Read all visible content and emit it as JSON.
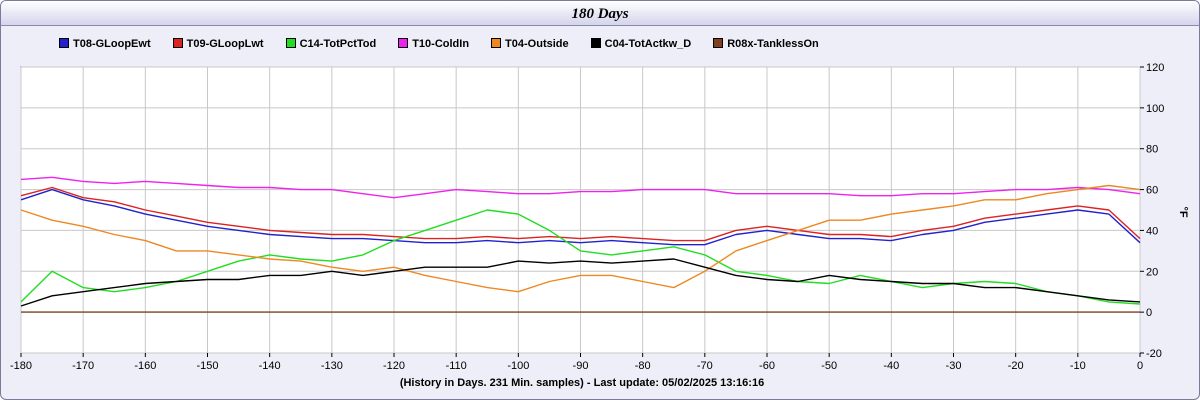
{
  "chart_data": {
    "type": "line",
    "title": "180 Days",
    "xlabel": "(History in Days. 231 Min. samples) - Last update: 05/02/2025 13:16:16",
    "ylabel": "°F",
    "xlim": [
      -180,
      0
    ],
    "ylim": [
      -20,
      120
    ],
    "x_ticks": [
      -180,
      -170,
      -160,
      -150,
      -140,
      -130,
      -120,
      -110,
      -100,
      -90,
      -80,
      -70,
      -60,
      -50,
      -40,
      -30,
      -20,
      -10,
      0
    ],
    "y_ticks": [
      -20,
      0,
      20,
      40,
      60,
      80,
      100,
      120
    ],
    "grid": true,
    "legend_position": "top",
    "series": [
      {
        "name": "T08-GLoopEwt",
        "color": "#2222cc",
        "key": [
          [
            -180,
            55
          ],
          [
            -175,
            60
          ],
          [
            -170,
            55
          ],
          [
            -165,
            52
          ],
          [
            -160,
            48
          ],
          [
            -155,
            45
          ],
          [
            -150,
            42
          ],
          [
            -145,
            40
          ],
          [
            -140,
            38
          ],
          [
            -135,
            37
          ],
          [
            -130,
            36
          ],
          [
            -125,
            36
          ],
          [
            -120,
            35
          ],
          [
            -115,
            34
          ],
          [
            -110,
            34
          ],
          [
            -105,
            35
          ],
          [
            -100,
            34
          ],
          [
            -95,
            35
          ],
          [
            -90,
            34
          ],
          [
            -85,
            35
          ],
          [
            -80,
            34
          ],
          [
            -75,
            33
          ],
          [
            -70,
            33
          ],
          [
            -65,
            38
          ],
          [
            -60,
            40
          ],
          [
            -55,
            38
          ],
          [
            -50,
            36
          ],
          [
            -45,
            36
          ],
          [
            -40,
            35
          ],
          [
            -35,
            38
          ],
          [
            -30,
            40
          ],
          [
            -25,
            44
          ],
          [
            -20,
            46
          ],
          [
            -15,
            48
          ],
          [
            -10,
            50
          ],
          [
            -5,
            48
          ],
          [
            0,
            34
          ]
        ]
      },
      {
        "name": "T09-GLoopLwt",
        "color": "#dd2222",
        "key": [
          [
            -180,
            57
          ],
          [
            -175,
            61
          ],
          [
            -170,
            56
          ],
          [
            -165,
            54
          ],
          [
            -160,
            50
          ],
          [
            -155,
            47
          ],
          [
            -150,
            44
          ],
          [
            -145,
            42
          ],
          [
            -140,
            40
          ],
          [
            -135,
            39
          ],
          [
            -130,
            38
          ],
          [
            -125,
            38
          ],
          [
            -120,
            37
          ],
          [
            -115,
            36
          ],
          [
            -110,
            36
          ],
          [
            -105,
            37
          ],
          [
            -100,
            36
          ],
          [
            -95,
            37
          ],
          [
            -90,
            36
          ],
          [
            -85,
            37
          ],
          [
            -80,
            36
          ],
          [
            -75,
            35
          ],
          [
            -70,
            35
          ],
          [
            -65,
            40
          ],
          [
            -60,
            42
          ],
          [
            -55,
            40
          ],
          [
            -50,
            38
          ],
          [
            -45,
            38
          ],
          [
            -40,
            37
          ],
          [
            -35,
            40
          ],
          [
            -30,
            42
          ],
          [
            -25,
            46
          ],
          [
            -20,
            48
          ],
          [
            -15,
            50
          ],
          [
            -10,
            52
          ],
          [
            -5,
            50
          ],
          [
            0,
            36
          ]
        ]
      },
      {
        "name": "C14-TotPctTod",
        "color": "#22dd22",
        "key": [
          [
            -180,
            5
          ],
          [
            -175,
            20
          ],
          [
            -170,
            12
          ],
          [
            -165,
            10
          ],
          [
            -160,
            12
          ],
          [
            -155,
            15
          ],
          [
            -150,
            20
          ],
          [
            -145,
            25
          ],
          [
            -140,
            28
          ],
          [
            -135,
            26
          ],
          [
            -130,
            25
          ],
          [
            -125,
            28
          ],
          [
            -120,
            35
          ],
          [
            -115,
            40
          ],
          [
            -110,
            45
          ],
          [
            -105,
            50
          ],
          [
            -100,
            48
          ],
          [
            -95,
            40
          ],
          [
            -90,
            30
          ],
          [
            -85,
            28
          ],
          [
            -80,
            30
          ],
          [
            -75,
            32
          ],
          [
            -70,
            28
          ],
          [
            -65,
            20
          ],
          [
            -60,
            18
          ],
          [
            -55,
            15
          ],
          [
            -50,
            14
          ],
          [
            -45,
            18
          ],
          [
            -40,
            15
          ],
          [
            -35,
            12
          ],
          [
            -30,
            14
          ],
          [
            -25,
            15
          ],
          [
            -20,
            14
          ],
          [
            -15,
            10
          ],
          [
            -10,
            8
          ],
          [
            -5,
            5
          ],
          [
            0,
            4
          ]
        ]
      },
      {
        "name": "T10-ColdIn",
        "color": "#ee22ee",
        "key": [
          [
            -180,
            65
          ],
          [
            -175,
            66
          ],
          [
            -170,
            64
          ],
          [
            -165,
            63
          ],
          [
            -160,
            64
          ],
          [
            -155,
            63
          ],
          [
            -150,
            62
          ],
          [
            -145,
            61
          ],
          [
            -140,
            61
          ],
          [
            -135,
            60
          ],
          [
            -130,
            60
          ],
          [
            -125,
            58
          ],
          [
            -120,
            56
          ],
          [
            -115,
            58
          ],
          [
            -110,
            60
          ],
          [
            -105,
            59
          ],
          [
            -100,
            58
          ],
          [
            -95,
            58
          ],
          [
            -90,
            59
          ],
          [
            -85,
            59
          ],
          [
            -80,
            60
          ],
          [
            -75,
            60
          ],
          [
            -70,
            60
          ],
          [
            -65,
            58
          ],
          [
            -60,
            58
          ],
          [
            -55,
            58
          ],
          [
            -50,
            58
          ],
          [
            -45,
            57
          ],
          [
            -40,
            57
          ],
          [
            -35,
            58
          ],
          [
            -30,
            58
          ],
          [
            -25,
            59
          ],
          [
            -20,
            60
          ],
          [
            -15,
            60
          ],
          [
            -10,
            61
          ],
          [
            -5,
            60
          ],
          [
            0,
            58
          ]
        ]
      },
      {
        "name": "T04-Outside",
        "color": "#ee8822",
        "key": [
          [
            -180,
            50
          ],
          [
            -175,
            45
          ],
          [
            -170,
            42
          ],
          [
            -165,
            38
          ],
          [
            -160,
            35
          ],
          [
            -155,
            30
          ],
          [
            -150,
            30
          ],
          [
            -145,
            28
          ],
          [
            -140,
            26
          ],
          [
            -135,
            25
          ],
          [
            -130,
            22
          ],
          [
            -125,
            20
          ],
          [
            -120,
            22
          ],
          [
            -115,
            18
          ],
          [
            -110,
            15
          ],
          [
            -105,
            12
          ],
          [
            -100,
            10
          ],
          [
            -95,
            15
          ],
          [
            -90,
            18
          ],
          [
            -85,
            18
          ],
          [
            -80,
            15
          ],
          [
            -75,
            12
          ],
          [
            -70,
            20
          ],
          [
            -65,
            30
          ],
          [
            -60,
            35
          ],
          [
            -55,
            40
          ],
          [
            -50,
            45
          ],
          [
            -45,
            45
          ],
          [
            -40,
            48
          ],
          [
            -35,
            50
          ],
          [
            -30,
            52
          ],
          [
            -25,
            55
          ],
          [
            -20,
            55
          ],
          [
            -15,
            58
          ],
          [
            -10,
            60
          ],
          [
            -5,
            62
          ],
          [
            0,
            60
          ]
        ]
      },
      {
        "name": "C04-TotActkw_D",
        "color": "#000000",
        "key": [
          [
            -180,
            3
          ],
          [
            -175,
            8
          ],
          [
            -170,
            10
          ],
          [
            -165,
            12
          ],
          [
            -160,
            14
          ],
          [
            -155,
            15
          ],
          [
            -150,
            16
          ],
          [
            -145,
            16
          ],
          [
            -140,
            18
          ],
          [
            -135,
            18
          ],
          [
            -130,
            20
          ],
          [
            -125,
            18
          ],
          [
            -120,
            20
          ],
          [
            -115,
            22
          ],
          [
            -110,
            22
          ],
          [
            -105,
            22
          ],
          [
            -100,
            25
          ],
          [
            -95,
            24
          ],
          [
            -90,
            25
          ],
          [
            -85,
            24
          ],
          [
            -80,
            25
          ],
          [
            -75,
            26
          ],
          [
            -70,
            22
          ],
          [
            -65,
            18
          ],
          [
            -60,
            16
          ],
          [
            -55,
            15
          ],
          [
            -50,
            18
          ],
          [
            -45,
            16
          ],
          [
            -40,
            15
          ],
          [
            -35,
            14
          ],
          [
            -30,
            14
          ],
          [
            -25,
            12
          ],
          [
            -20,
            12
          ],
          [
            -15,
            10
          ],
          [
            -10,
            8
          ],
          [
            -5,
            6
          ],
          [
            0,
            5
          ]
        ]
      },
      {
        "name": "R08x-TanklessOn",
        "color": "#804020",
        "key": [
          [
            -180,
            0
          ],
          [
            -90,
            0
          ],
          [
            0,
            0
          ]
        ]
      }
    ]
  }
}
